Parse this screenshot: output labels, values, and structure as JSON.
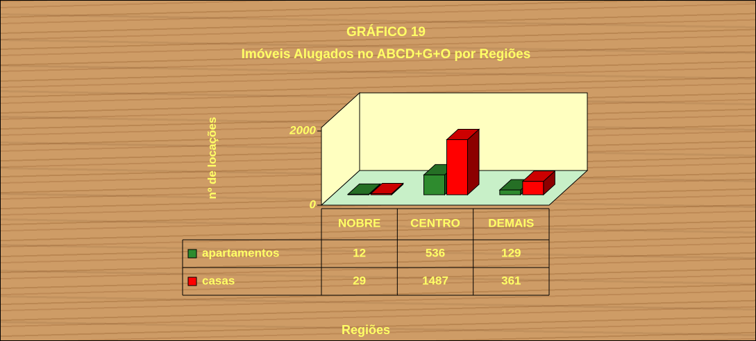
{
  "chart_data": {
    "type": "bar3d",
    "title": "GRÁFICO 19",
    "subtitle": "Imóveis Alugados no ABCD+G+O por Regiões",
    "y_label": "nº de locações",
    "x_label": "Regiões",
    "categories": [
      "NOBRE",
      "CENTRO",
      "DEMAIS"
    ],
    "series": [
      {
        "name": "apartamentos",
        "color": "#2e8b2e",
        "values": [
          12,
          536,
          129
        ]
      },
      {
        "name": "casas",
        "color": "#ff0000",
        "values": [
          29,
          1487,
          361
        ]
      }
    ],
    "ylim": [
      0,
      2000
    ],
    "yticks": [
      0,
      2000
    ]
  }
}
